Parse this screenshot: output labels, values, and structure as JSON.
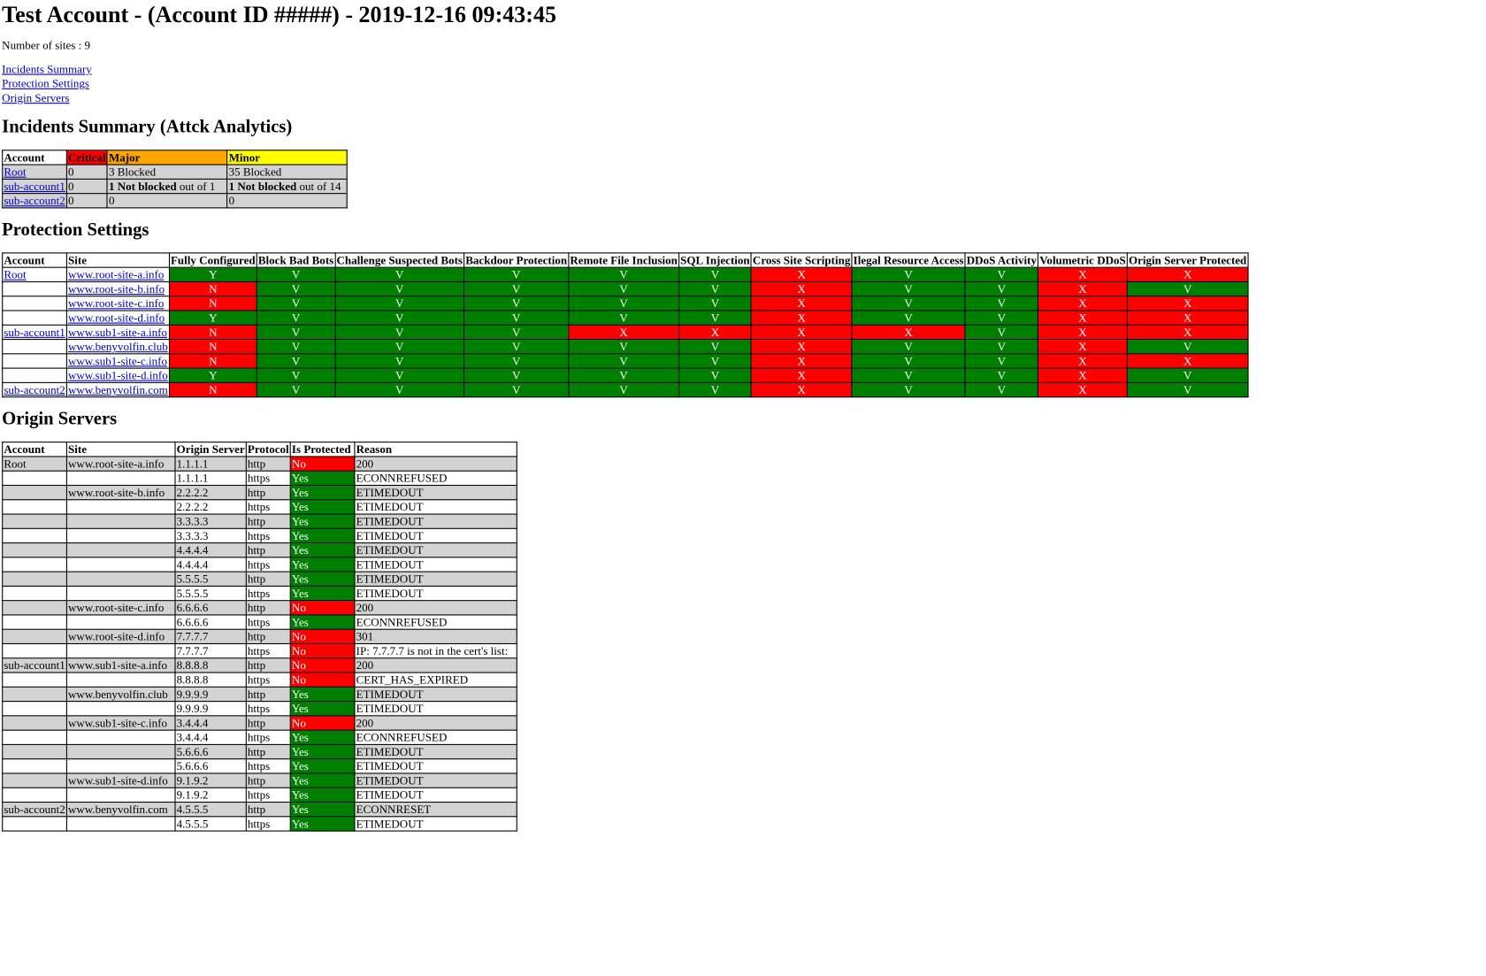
{
  "page": {
    "title": "Test Account - (Account ID #####) - 2019-12-16 09:43:45",
    "sites_count_text": "Number of sites : 9"
  },
  "nav": [
    {
      "label": "Incidents Summary"
    },
    {
      "label": "Protection Settings"
    },
    {
      "label": "Origin Servers"
    }
  ],
  "colors": {
    "good": "#008000",
    "bad": "#ff0000",
    "critical": "#ff0000",
    "major": "#ffa500",
    "minor": "#ffff00",
    "row_alt": "#d3d3d3",
    "link": "#0000cc"
  },
  "incidents": {
    "heading": "Incidents Summary (Attck Analytics)",
    "columns": [
      "Account",
      "Critical",
      "Major",
      "Minor"
    ],
    "rows": [
      {
        "account": "Root",
        "critical": "0",
        "major": {
          "bold": "",
          "rest": "3 Blocked"
        },
        "minor": {
          "bold": "",
          "rest": "35 Blocked"
        }
      },
      {
        "account": "sub-account1",
        "critical": "0",
        "major": {
          "bold": "1 Not blocked",
          "rest": " out of 1"
        },
        "minor": {
          "bold": "1 Not blocked",
          "rest": " out of 14"
        }
      },
      {
        "account": "sub-account2",
        "critical": "0",
        "major": {
          "bold": "",
          "rest": "0"
        },
        "minor": {
          "bold": "",
          "rest": "0"
        }
      }
    ]
  },
  "protection": {
    "heading": "Protection Settings",
    "columns": [
      "Account",
      "Site",
      "Fully Configured",
      "Block Bad Bots",
      "Challenge Suspected Bots",
      "Backdoor Protection",
      "Remote File Inclusion",
      "SQL Injection",
      "Cross Site Scripting",
      "Ilegal Resource Access",
      "DDoS Activity",
      "Volumetric DDoS",
      "Origin Server Protected"
    ],
    "rows": [
      {
        "account": "Root",
        "site": "www.root-site-a.info",
        "values": [
          "Y",
          "V",
          "V",
          "V",
          "V",
          "V",
          "X",
          "V",
          "V",
          "X",
          "X"
        ]
      },
      {
        "account": "",
        "site": "www.root-site-b.info",
        "values": [
          "N",
          "V",
          "V",
          "V",
          "V",
          "V",
          "X",
          "V",
          "V",
          "X",
          "V"
        ]
      },
      {
        "account": "",
        "site": "www.root-site-c.info",
        "values": [
          "N",
          "V",
          "V",
          "V",
          "V",
          "V",
          "X",
          "V",
          "V",
          "X",
          "X"
        ]
      },
      {
        "account": "",
        "site": "www.root-site-d.info",
        "values": [
          "Y",
          "V",
          "V",
          "V",
          "V",
          "V",
          "X",
          "V",
          "V",
          "X",
          "X"
        ]
      },
      {
        "account": "sub-account1",
        "site": "www.sub1-site-a.info",
        "values": [
          "N",
          "V",
          "V",
          "V",
          "X",
          "X",
          "X",
          "X",
          "V",
          "X",
          "X"
        ]
      },
      {
        "account": "",
        "site": "www.benyvolfin.club",
        "values": [
          "N",
          "V",
          "V",
          "V",
          "V",
          "V",
          "X",
          "V",
          "V",
          "X",
          "V"
        ]
      },
      {
        "account": "",
        "site": "www.sub1-site-c.info",
        "values": [
          "N",
          "V",
          "V",
          "V",
          "V",
          "V",
          "X",
          "V",
          "V",
          "X",
          "X"
        ]
      },
      {
        "account": "",
        "site": "www.sub1-site-d.info",
        "values": [
          "Y",
          "V",
          "V",
          "V",
          "V",
          "V",
          "X",
          "V",
          "V",
          "X",
          "V"
        ]
      },
      {
        "account": "sub-account2",
        "site": "www.benyvolfin.com",
        "values": [
          "N",
          "V",
          "V",
          "V",
          "V",
          "V",
          "X",
          "V",
          "V",
          "X",
          "V"
        ]
      }
    ]
  },
  "origins": {
    "heading": "Origin Servers",
    "columns": [
      "Account",
      "Site",
      "Origin Server",
      "Protocol",
      "Is Protected",
      "Reason"
    ],
    "rows": [
      {
        "account": "Root",
        "site": "www.root-site-a.info",
        "server": "1.1.1.1",
        "protocol": "http",
        "protected": "No",
        "reason": "200"
      },
      {
        "account": "",
        "site": "",
        "server": "1.1.1.1",
        "protocol": "https",
        "protected": "Yes",
        "reason": "ECONNREFUSED"
      },
      {
        "account": "",
        "site": "www.root-site-b.info",
        "server": "2.2.2.2",
        "protocol": "http",
        "protected": "Yes",
        "reason": "ETIMEDOUT"
      },
      {
        "account": "",
        "site": "",
        "server": "2.2.2.2",
        "protocol": "https",
        "protected": "Yes",
        "reason": "ETIMEDOUT"
      },
      {
        "account": "",
        "site": "",
        "server": "3.3.3.3",
        "protocol": "http",
        "protected": "Yes",
        "reason": "ETIMEDOUT"
      },
      {
        "account": "",
        "site": "",
        "server": "3.3.3.3",
        "protocol": "https",
        "protected": "Yes",
        "reason": "ETIMEDOUT"
      },
      {
        "account": "",
        "site": "",
        "server": "4.4.4.4",
        "protocol": "http",
        "protected": "Yes",
        "reason": "ETIMEDOUT"
      },
      {
        "account": "",
        "site": "",
        "server": "4.4.4.4",
        "protocol": "https",
        "protected": "Yes",
        "reason": "ETIMEDOUT"
      },
      {
        "account": "",
        "site": "",
        "server": "5.5.5.5",
        "protocol": "http",
        "protected": "Yes",
        "reason": "ETIMEDOUT"
      },
      {
        "account": "",
        "site": "",
        "server": "5.5.5.5",
        "protocol": "https",
        "protected": "Yes",
        "reason": "ETIMEDOUT"
      },
      {
        "account": "",
        "site": "www.root-site-c.info",
        "server": "6.6.6.6",
        "protocol": "http",
        "protected": "No",
        "reason": "200"
      },
      {
        "account": "",
        "site": "",
        "server": "6.6.6.6",
        "protocol": "https",
        "protected": "Yes",
        "reason": "ECONNREFUSED"
      },
      {
        "account": "",
        "site": "www.root-site-d.info",
        "server": "7.7.7.7",
        "protocol": "http",
        "protected": "No",
        "reason": "301"
      },
      {
        "account": "",
        "site": "",
        "server": "7.7.7.7",
        "protocol": "https",
        "protected": "No",
        "reason": "IP: 7.7.7.7 is not in the cert's list:"
      },
      {
        "account": "sub-account1",
        "site": "www.sub1-site-a.info",
        "server": "8.8.8.8",
        "protocol": "http",
        "protected": "No",
        "reason": "200"
      },
      {
        "account": "",
        "site": "",
        "server": "8.8.8.8",
        "protocol": "https",
        "protected": "No",
        "reason": "CERT_HAS_EXPIRED"
      },
      {
        "account": "",
        "site": "www.benyvolfin.club",
        "server": "9.9.9.9",
        "protocol": "http",
        "protected": "Yes",
        "reason": "ETIMEDOUT"
      },
      {
        "account": "",
        "site": "",
        "server": "9.9.9.9",
        "protocol": "https",
        "protected": "Yes",
        "reason": "ETIMEDOUT"
      },
      {
        "account": "",
        "site": "www.sub1-site-c.info",
        "server": "3.4.4.4",
        "protocol": "http",
        "protected": "No",
        "reason": "200"
      },
      {
        "account": "",
        "site": "",
        "server": "3.4.4.4",
        "protocol": "https",
        "protected": "Yes",
        "reason": "ECONNREFUSED"
      },
      {
        "account": "",
        "site": "",
        "server": "5.6.6.6",
        "protocol": "http",
        "protected": "Yes",
        "reason": "ETIMEDOUT"
      },
      {
        "account": "",
        "site": "",
        "server": "5.6.6.6",
        "protocol": "https",
        "protected": "Yes",
        "reason": "ETIMEDOUT"
      },
      {
        "account": "",
        "site": "www.sub1-site-d.info",
        "server": "9.1.9.2",
        "protocol": "http",
        "protected": "Yes",
        "reason": "ETIMEDOUT"
      },
      {
        "account": "",
        "site": "",
        "server": "9.1.9.2",
        "protocol": "https",
        "protected": "Yes",
        "reason": "ETIMEDOUT"
      },
      {
        "account": "sub-account2",
        "site": "www.benyvolfin.com",
        "server": "4.5.5.5",
        "protocol": "http",
        "protected": "Yes",
        "reason": "ECONNRESET"
      },
      {
        "account": "",
        "site": "",
        "server": "4.5.5.5",
        "protocol": "https",
        "protected": "Yes",
        "reason": "ETIMEDOUT"
      }
    ]
  }
}
